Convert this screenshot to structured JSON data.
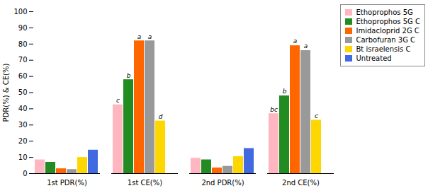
{
  "chart_data": {
    "type": "bar",
    "categories": [
      "1st PDR(%)",
      "1st CE(%)",
      "2nd PDR(%)",
      "2nd CE(%)"
    ],
    "series": [
      {
        "name": "Ethoprophos 5G",
        "color": "#FFB6C1",
        "values": [
          8.5,
          42.5,
          9.5,
          37.0
        ]
      },
      {
        "name": "Ethoprophos 5G C",
        "color": "#228B22",
        "values": [
          7.0,
          58.0,
          8.5,
          48.0
        ]
      },
      {
        "name": "Imidacloprid 2G C",
        "color": "#FF6600",
        "values": [
          3.0,
          82.0,
          3.5,
          79.0
        ]
      },
      {
        "name": "Carbofuran 3G C",
        "color": "#999999",
        "values": [
          2.5,
          82.0,
          4.5,
          76.0
        ]
      },
      {
        "name": "Bt israelensis C",
        "color": "#FFD700",
        "values": [
          10.0,
          32.5,
          10.5,
          33.0
        ]
      },
      {
        "name": "Untreated",
        "color": "#4169E1",
        "values": [
          14.5,
          0,
          15.5,
          0
        ]
      }
    ],
    "annotations": [
      {
        "category": "1st CE(%)",
        "series": "Ethoprophos 5G",
        "label": "c"
      },
      {
        "category": "1st CE(%)",
        "series": "Ethoprophos 5G C",
        "label": "b"
      },
      {
        "category": "1st CE(%)",
        "series": "Imidacloprid 2G C",
        "label": "a"
      },
      {
        "category": "1st CE(%)",
        "series": "Carbofuran 3G C",
        "label": "a"
      },
      {
        "category": "1st CE(%)",
        "series": "Bt israelensis C",
        "label": "d"
      },
      {
        "category": "2nd CE(%)",
        "series": "Ethoprophos 5G",
        "label": "bc"
      },
      {
        "category": "2nd CE(%)",
        "series": "Ethoprophos 5G C",
        "label": "b"
      },
      {
        "category": "2nd CE(%)",
        "series": "Imidacloprid 2G C",
        "label": "a"
      },
      {
        "category": "2nd CE(%)",
        "series": "Carbofuran 3G C",
        "label": "a"
      },
      {
        "category": "2nd CE(%)",
        "series": "Bt israelensis C",
        "label": "c"
      }
    ],
    "ylabel": "PDR(%) & CE(%)",
    "ylim": [
      0,
      100
    ],
    "yticks": [
      0,
      10,
      20,
      30,
      40,
      50,
      60,
      70,
      80,
      90,
      100
    ],
    "grid": false,
    "legend": "upper right"
  }
}
